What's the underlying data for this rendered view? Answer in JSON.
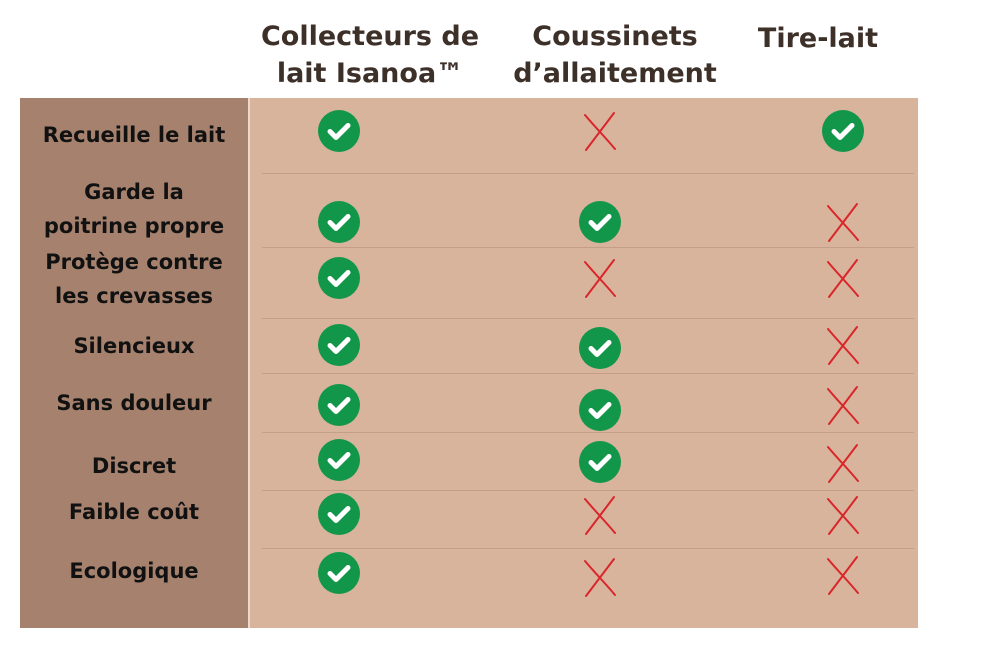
{
  "columns": [
    {
      "title": "Collecteurs de lait Isanoa™"
    },
    {
      "title": "Coussinets d’allaitement"
    },
    {
      "title": "Tire-lait"
    }
  ],
  "rows": [
    {
      "label": "Recueille le lait",
      "values": [
        true,
        false,
        true
      ]
    },
    {
      "label": "Garde la poitrine propre",
      "values": [
        true,
        true,
        false
      ]
    },
    {
      "label": "Protège contre les crevasses",
      "values": [
        true,
        false,
        false
      ]
    },
    {
      "label": "Silencieux",
      "values": [
        true,
        true,
        false
      ]
    },
    {
      "label": "Sans douleur",
      "values": [
        true,
        true,
        false
      ]
    },
    {
      "label": "Discret",
      "values": [
        true,
        true,
        false
      ]
    },
    {
      "label": "Faible coût",
      "values": [
        true,
        false,
        false
      ]
    },
    {
      "label": "Ecologique",
      "values": [
        true,
        false,
        false
      ]
    }
  ],
  "icons": {
    "yes": "check-circle-icon",
    "no": "cross-icon"
  },
  "colors": {
    "check": "#12964a",
    "cross": "#d9262b",
    "label_column": "#a6826e",
    "table": "#d9b49c"
  }
}
